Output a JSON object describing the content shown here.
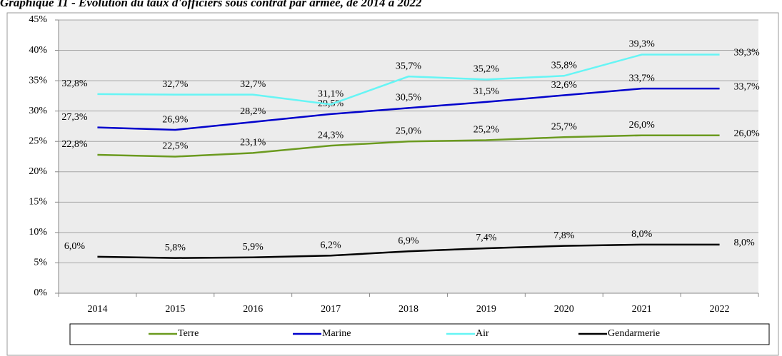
{
  "chart_data": {
    "type": "line",
    "title": "Graphique 11 - Évolution du taux d'officiers sous contrat par armée, de 2014 à 2022",
    "categories": [
      "2014",
      "2015",
      "2016",
      "2017",
      "2018",
      "2019",
      "2020",
      "2021",
      "2022"
    ],
    "series": [
      {
        "name": "Terre",
        "color": "#6b9a1f",
        "values": [
          22.8,
          22.5,
          23.1,
          24.3,
          25.0,
          25.2,
          25.7,
          26.0,
          26.0
        ],
        "value_labels": [
          "22,8%",
          "22,5%",
          "23,1%",
          "24,3%",
          "25,0%",
          "25,2%",
          "25,7%",
          "26,0%",
          "26,0%"
        ]
      },
      {
        "name": "Marine",
        "color": "#0000cc",
        "values": [
          27.3,
          26.9,
          28.2,
          29.5,
          30.5,
          31.5,
          32.6,
          33.7,
          33.7
        ],
        "value_labels": [
          "27,3%",
          "26,9%",
          "28,2%",
          "29,5%",
          "30,5%",
          "31,5%",
          "32,6%",
          "33,7%",
          "33,7%"
        ]
      },
      {
        "name": "Air",
        "color": "#66f5f5",
        "values": [
          32.8,
          32.7,
          32.7,
          31.1,
          35.7,
          35.2,
          35.8,
          39.3,
          39.3
        ],
        "value_labels": [
          "32,8%",
          "32,7%",
          "32,7%",
          "31,1%",
          "35,7%",
          "35,2%",
          "35,8%",
          "39,3%",
          "39,3%"
        ]
      },
      {
        "name": "Gendarmerie",
        "color": "#000000",
        "values": [
          6.0,
          5.8,
          5.9,
          6.2,
          6.9,
          7.4,
          7.8,
          8.0,
          8.0
        ],
        "value_labels": [
          "6,0%",
          "5,8%",
          "5,9%",
          "6,2%",
          "6,9%",
          "7,4%",
          "7,8%",
          "8,0%",
          "8,0%"
        ]
      }
    ],
    "ylim": [
      0,
      45
    ],
    "yticks": [
      {
        "value": 0,
        "label": "0%"
      },
      {
        "value": 5,
        "label": "5%"
      },
      {
        "value": 10,
        "label": "10%"
      },
      {
        "value": 15,
        "label": "15%"
      },
      {
        "value": 20,
        "label": "20%"
      },
      {
        "value": 25,
        "label": "25%"
      },
      {
        "value": 30,
        "label": "30%"
      },
      {
        "value": 35,
        "label": "35%"
      },
      {
        "value": 40,
        "label": "40%"
      },
      {
        "value": 45,
        "label": "45%"
      }
    ],
    "grid": true,
    "legend": "bottom"
  }
}
